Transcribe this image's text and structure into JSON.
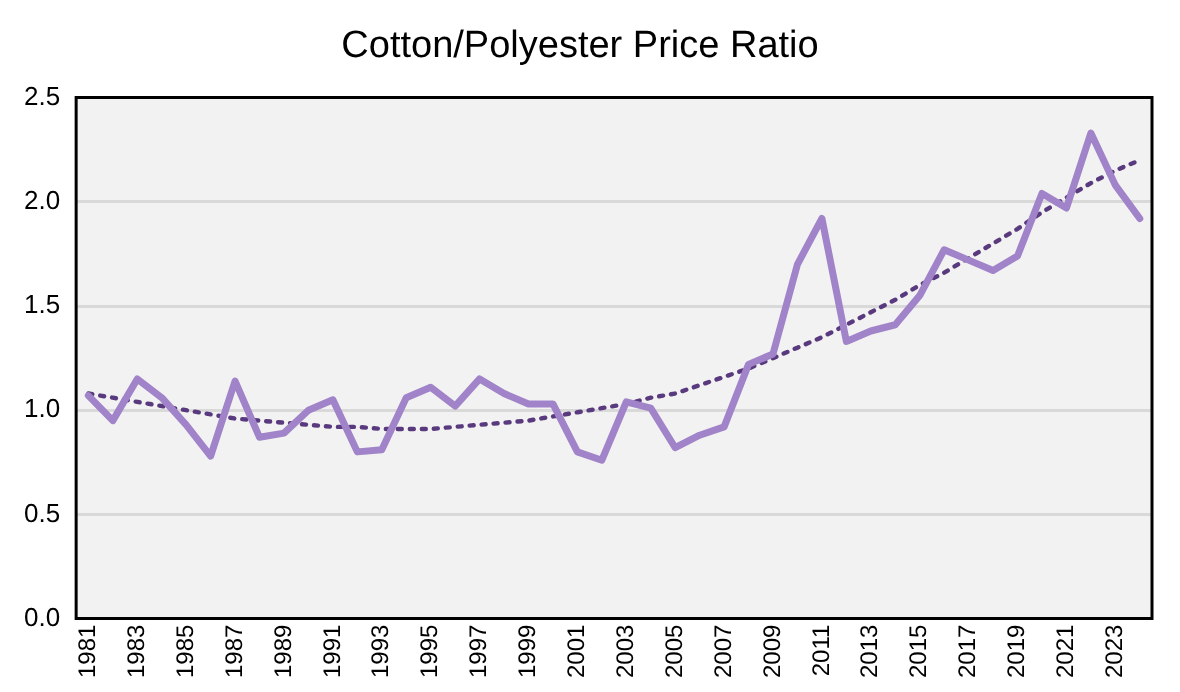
{
  "chart_data": {
    "type": "line",
    "title": "Cotton/Polyester Price Ratio",
    "categories": [
      "1981",
      null,
      "1983",
      null,
      "1985",
      null,
      "1987",
      null,
      "1989",
      null,
      "1991",
      null,
      "1993",
      null,
      "1995",
      null,
      "1997",
      null,
      "1999",
      null,
      "2001",
      null,
      "2003",
      null,
      "2005",
      null,
      "2007",
      null,
      "2009",
      null,
      "2011",
      null,
      "2013",
      null,
      "2015",
      null,
      "2017",
      null,
      "2019",
      null,
      "2021",
      null,
      "2023",
      null
    ],
    "series": [
      {
        "color": "#a083c8",
        "line_style": "solid",
        "values": [
          1.07,
          0.95,
          1.15,
          1.06,
          0.93,
          0.78,
          1.14,
          0.87,
          0.89,
          1.0,
          1.05,
          0.8,
          0.81,
          1.06,
          1.11,
          1.02,
          1.15,
          1.08,
          1.03,
          1.03,
          0.8,
          0.76,
          1.04,
          1.01,
          0.82,
          0.88,
          0.92,
          1.22,
          1.27,
          1.7,
          1.92,
          1.33,
          1.38,
          1.41,
          1.55,
          1.77,
          1.72,
          1.67,
          1.74,
          2.04,
          1.97,
          2.33,
          2.08,
          1.92
        ]
      },
      {
        "color": "#5a3a7e",
        "line_style": "dotted",
        "values": [
          1.08,
          1.06,
          1.04,
          1.02,
          1.0,
          0.98,
          0.96,
          0.95,
          0.94,
          0.93,
          0.92,
          0.92,
          0.91,
          0.91,
          0.91,
          0.92,
          0.93,
          0.94,
          0.95,
          0.97,
          0.99,
          1.01,
          1.03,
          1.06,
          1.08,
          1.12,
          1.16,
          1.2,
          1.25,
          1.3,
          1.35,
          1.41,
          1.47,
          1.53,
          1.6,
          1.66,
          1.73,
          1.8,
          1.87,
          1.95,
          2.02,
          2.09,
          2.15,
          2.2
        ]
      }
    ],
    "ylim": [
      0,
      2.5
    ],
    "yticks": [
      {
        "value": 0,
        "label": "0.0"
      },
      {
        "value": 0.5,
        "label": "0.5"
      },
      {
        "value": 1,
        "label": "1.0"
      },
      {
        "value": 1.5,
        "label": "1.5"
      },
      {
        "value": 2,
        "label": "2.0"
      },
      {
        "value": 2.5,
        "label": "2.5"
      }
    ],
    "grid": "y",
    "legend": false,
    "marker": "none"
  }
}
